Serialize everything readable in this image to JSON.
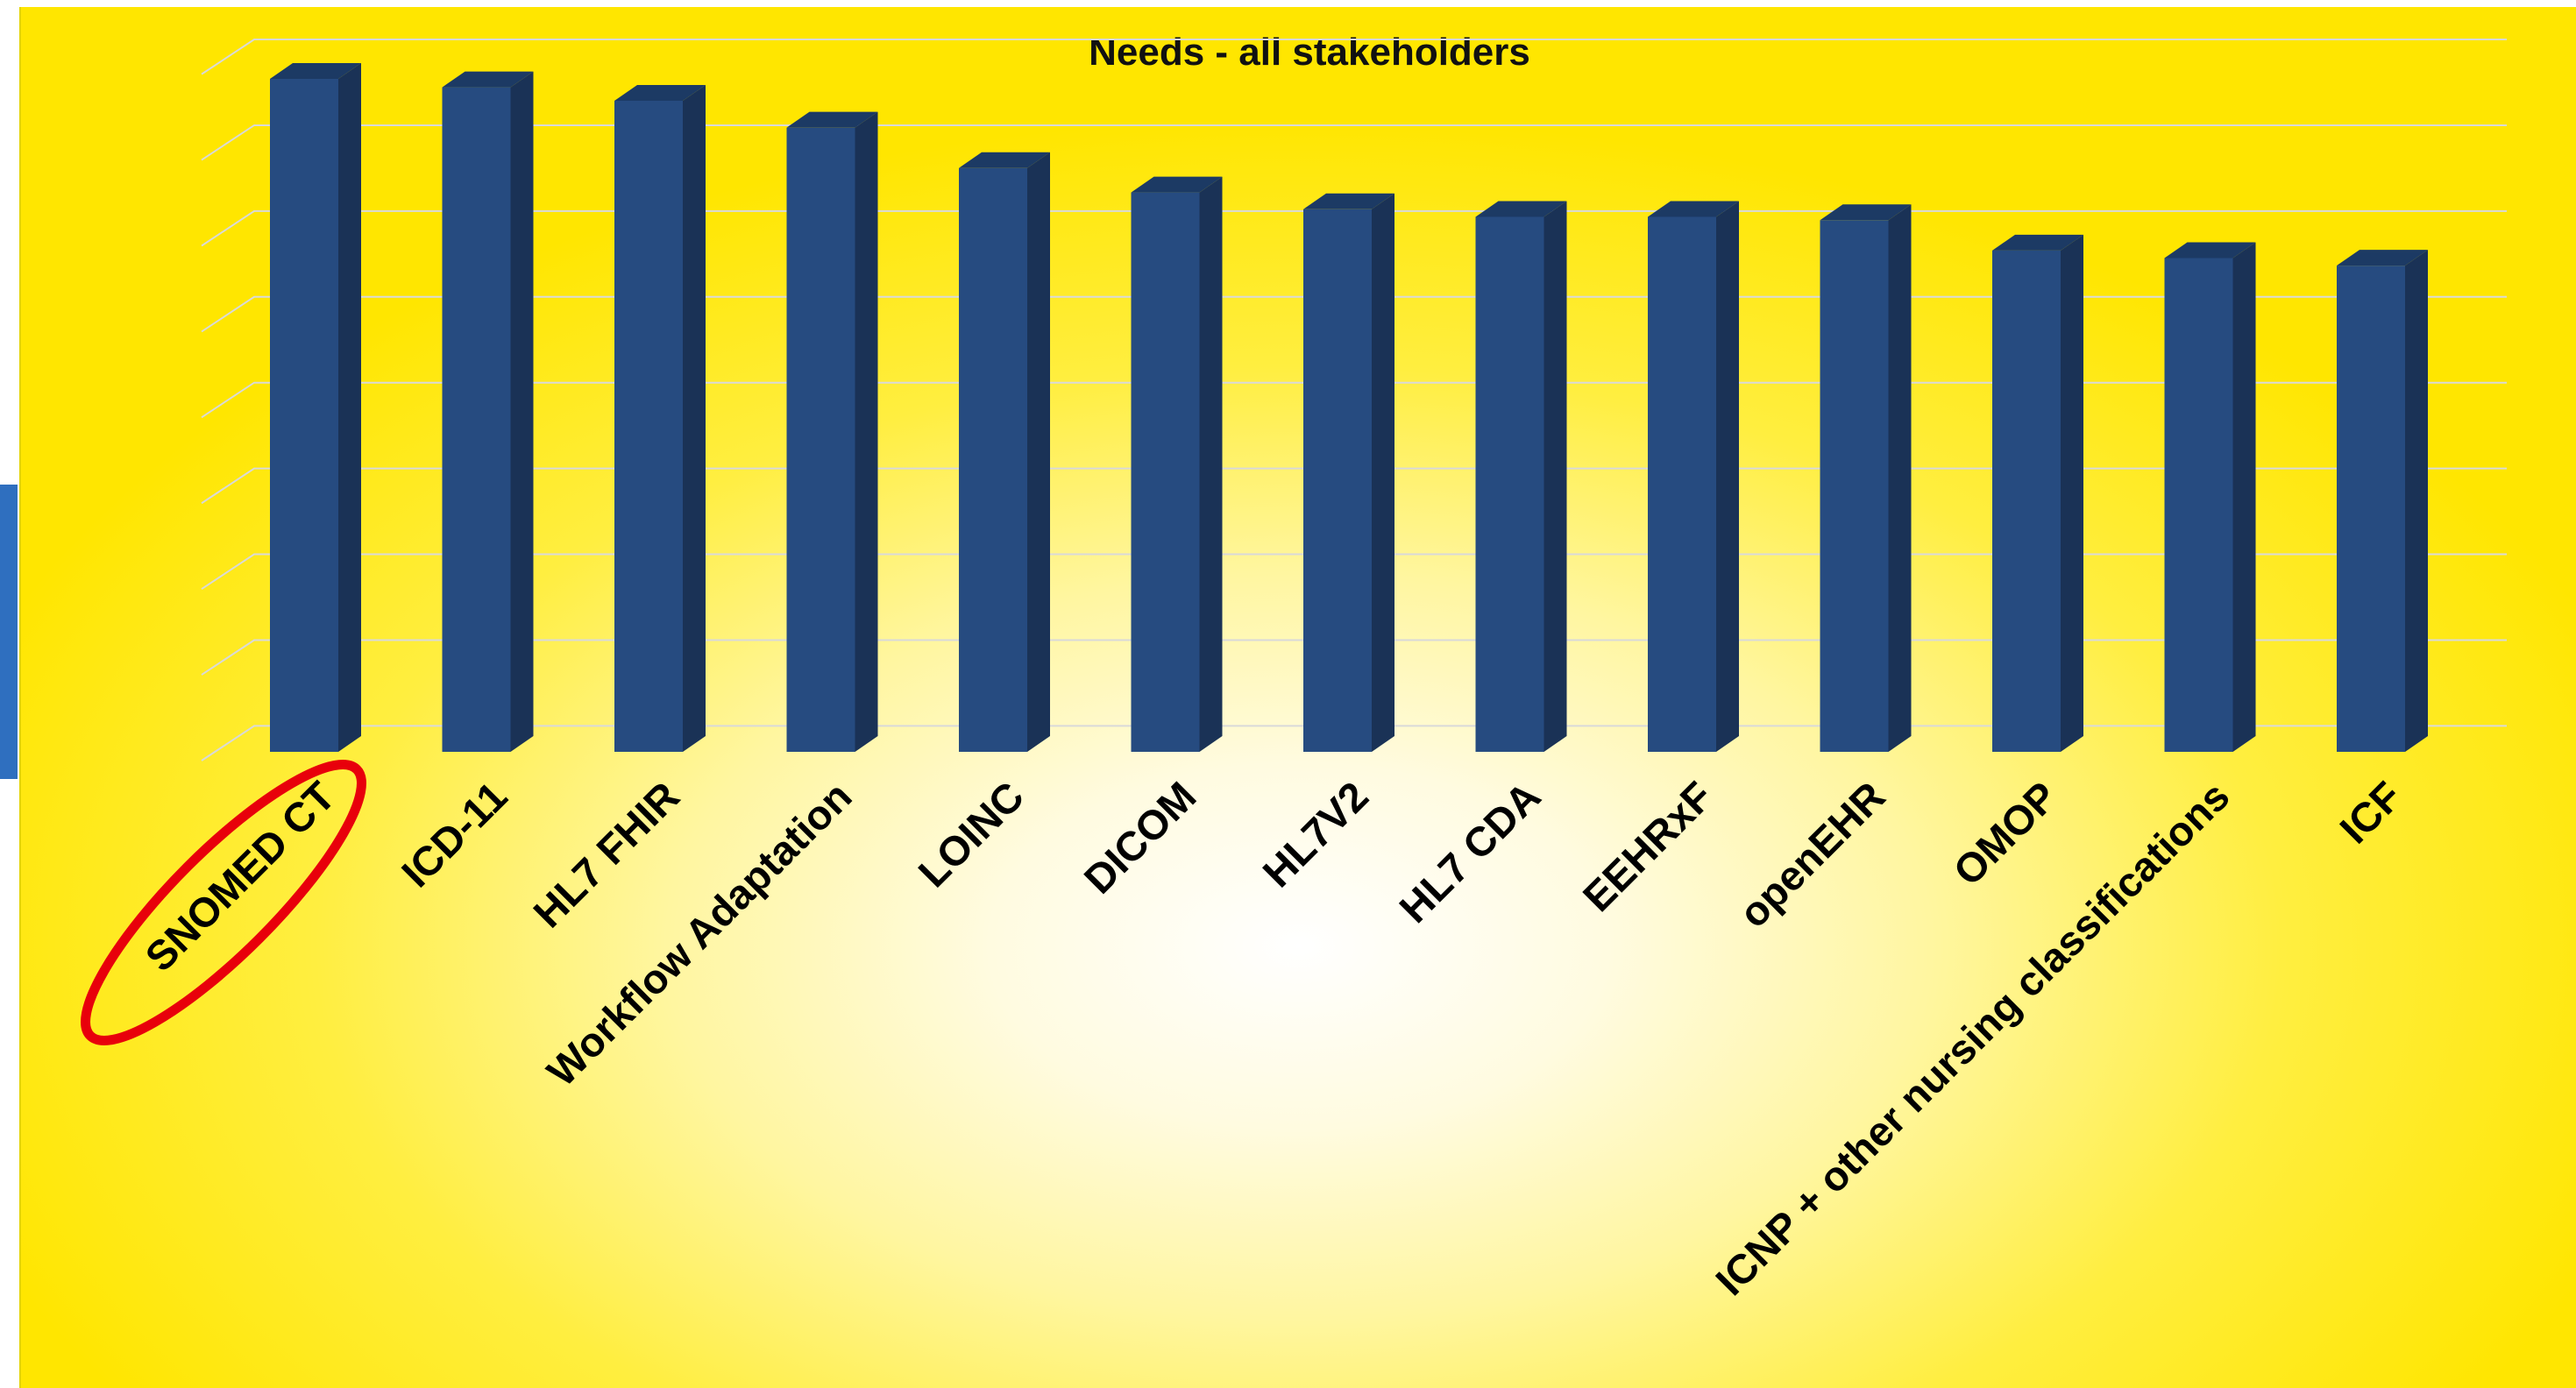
{
  "chart_data": {
    "type": "bar",
    "title": "Needs - all stakeholders",
    "categories": [
      "SNOMED CT",
      "ICD-11",
      "HL7 FHIR",
      "Workflow Adaptation",
      "LOINC",
      "DICOM",
      "HL7V2",
      "HL7 CDA",
      "EEHRxF",
      "openEHR",
      "OMOP",
      "ICNP + other nursing classifications",
      "ICF"
    ],
    "values": [
      80,
      79,
      77.4,
      74.2,
      69.4,
      66.5,
      64.5,
      63.6,
      63.6,
      63.2,
      59.6,
      58.7,
      57.8
    ],
    "ylim": [
      0,
      85
    ],
    "grid": true,
    "legend": "none",
    "highlighted_category": "SNOMED CT",
    "colors": {
      "bar_front": "#264b80",
      "bar_side": "#1a3256",
      "bar_top": "#1c3a64",
      "highlight_ring": "#e8000b",
      "background_outer": "#ffe600",
      "background_center": "#ffffff"
    }
  }
}
